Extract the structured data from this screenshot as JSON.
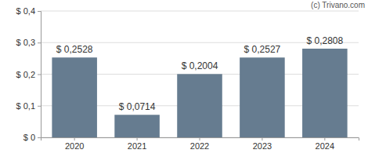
{
  "chart_data": {
    "type": "bar",
    "annotations": [
      "(c) Trivano.com"
    ],
    "categories": [
      "2020",
      "2021",
      "2022",
      "2023",
      "2024"
    ],
    "values": [
      0.2528,
      0.0714,
      0.2004,
      0.2527,
      0.2808
    ],
    "value_labels": [
      "$ 0,2528",
      "$ 0,0714",
      "$ 0,2004",
      "$ 0,2527",
      "$ 0,2808"
    ],
    "data_labels": true,
    "color": "#667c90",
    "ylim": [
      0,
      0.4
    ],
    "yticks": [
      {
        "value": 0,
        "label": "$ 0"
      },
      {
        "value": 0.1,
        "label": "$ 0,1"
      },
      {
        "value": 0.2,
        "label": "$ 0,2"
      },
      {
        "value": 0.3,
        "label": "$ 0,3"
      },
      {
        "value": 0.4,
        "label": "$ 0,4"
      }
    ],
    "grid": true
  }
}
